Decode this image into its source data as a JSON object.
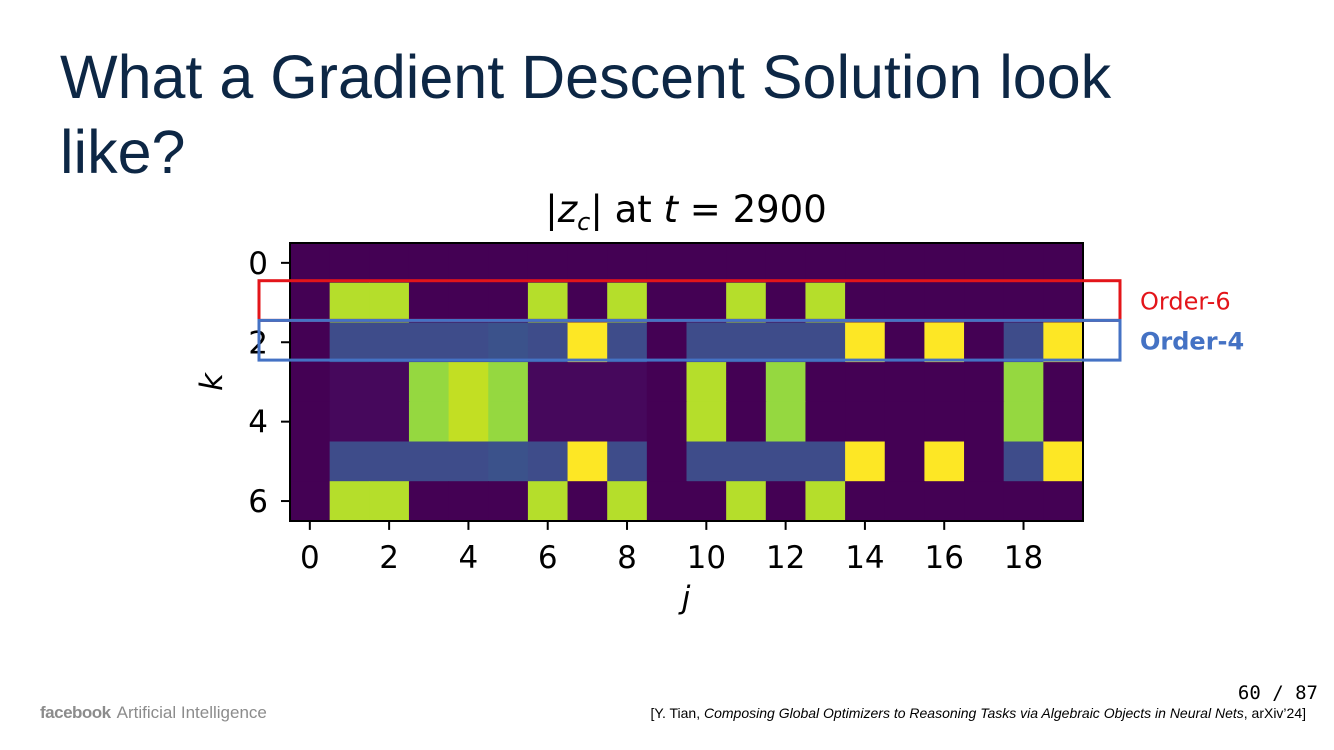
{
  "slide": {
    "title": "What a Gradient Descent Solution look like?",
    "page_number": "60 / 87",
    "citation": {
      "prefix": "[Y. Tian, ",
      "title": "Composing Global Optimizers to Reasoning Tasks via Algebraic Objects in Neural Nets",
      "suffix": ", arXiv’24]"
    },
    "logo": {
      "brand": "facebook",
      "text": "Artificial Intelligence"
    }
  },
  "colors": {
    "title": "#0d2745",
    "order6": "#e3151a",
    "order4": "#4472c4",
    "palette": {
      "dark": "#440154",
      "dark2": "#46085c",
      "steel": "#3e4c8a",
      "steel2": "#3b528b",
      "lgreen": "#95d840",
      "lime": "#b5de2b",
      "lime2": "#c2df23",
      "yellow": "#fde725"
    }
  },
  "chart_data": {
    "type": "heatmap",
    "title": "|z_c| at t = 2900",
    "xlabel": "j",
    "ylabel": "k",
    "x_ticks": [
      0,
      2,
      4,
      6,
      8,
      10,
      12,
      14,
      16,
      18
    ],
    "y_ticks": [
      0,
      2,
      4,
      6
    ],
    "n_cols": 20,
    "n_rows": 7,
    "colormap": "viridis",
    "rows": [
      [
        "dark",
        "dark",
        "dark",
        "dark",
        "dark",
        "dark",
        "dark",
        "dark",
        "dark",
        "dark",
        "dark",
        "dark",
        "dark",
        "dark",
        "dark",
        "dark",
        "dark",
        "dark",
        "dark",
        "dark"
      ],
      [
        "dark",
        "lime",
        "lime",
        "dark",
        "dark",
        "dark",
        "lime",
        "dark",
        "lime",
        "dark",
        "dark",
        "lime",
        "dark",
        "lime",
        "dark",
        "dark",
        "dark",
        "dark",
        "dark",
        "dark"
      ],
      [
        "dark",
        "steel",
        "steel",
        "steel",
        "steel",
        "steel2",
        "steel",
        "yellow",
        "steel",
        "dark",
        "steel",
        "steel",
        "steel",
        "steel",
        "yellow",
        "dark",
        "yellow",
        "dark",
        "steel",
        "yellow"
      ],
      [
        "dark",
        "dark2",
        "dark2",
        "lgreen",
        "lime2",
        "lgreen",
        "dark2",
        "dark2",
        "dark2",
        "dark",
        "lime",
        "dark",
        "lgreen",
        "dark",
        "dark",
        "dark",
        "dark",
        "dark",
        "lgreen",
        "dark"
      ],
      [
        "dark",
        "dark2",
        "dark2",
        "lgreen",
        "lime2",
        "lgreen",
        "dark2",
        "dark2",
        "dark2",
        "dark",
        "lime",
        "dark",
        "lgreen",
        "dark",
        "dark",
        "dark",
        "dark",
        "dark",
        "lgreen",
        "dark"
      ],
      [
        "dark",
        "steel",
        "steel",
        "steel",
        "steel",
        "steel2",
        "steel",
        "yellow",
        "steel",
        "dark",
        "steel",
        "steel",
        "steel",
        "steel",
        "yellow",
        "dark",
        "yellow",
        "dark",
        "steel",
        "yellow"
      ],
      [
        "dark",
        "lime",
        "lime",
        "dark",
        "dark",
        "dark",
        "lime",
        "dark",
        "lime",
        "dark",
        "dark",
        "lime",
        "dark",
        "lime",
        "dark",
        "dark",
        "dark",
        "dark",
        "dark",
        "dark"
      ]
    ],
    "annotations": [
      {
        "label": "Order-6",
        "rows": [
          1,
          1
        ],
        "color_key": "order6",
        "bold": false
      },
      {
        "label": "Order-4",
        "rows": [
          2,
          2
        ],
        "color_key": "order4",
        "bold": true
      }
    ]
  }
}
